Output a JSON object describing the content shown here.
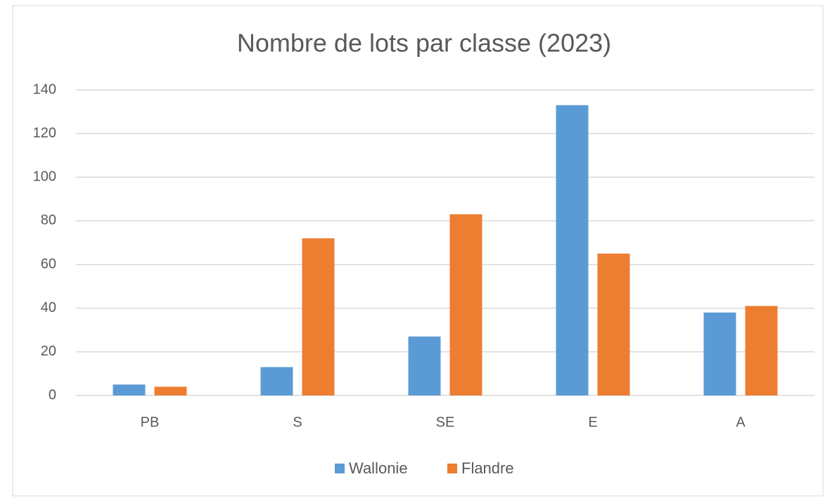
{
  "chart_data": {
    "type": "bar",
    "title": "Nombre de lots par classe (2023)",
    "categories": [
      "PB",
      "S",
      "SE",
      "E",
      "A"
    ],
    "series": [
      {
        "name": "Wallonie",
        "color": "#5b9bd5",
        "values": [
          5,
          13,
          27,
          133,
          38
        ]
      },
      {
        "name": "Flandre",
        "color": "#ed7d31",
        "values": [
          4,
          72,
          83,
          65,
          41
        ]
      }
    ],
    "ylim": [
      0,
      140
    ],
    "yticks": [
      0,
      20,
      40,
      60,
      80,
      100,
      120,
      140
    ],
    "grid": true,
    "legend": "bottom"
  }
}
